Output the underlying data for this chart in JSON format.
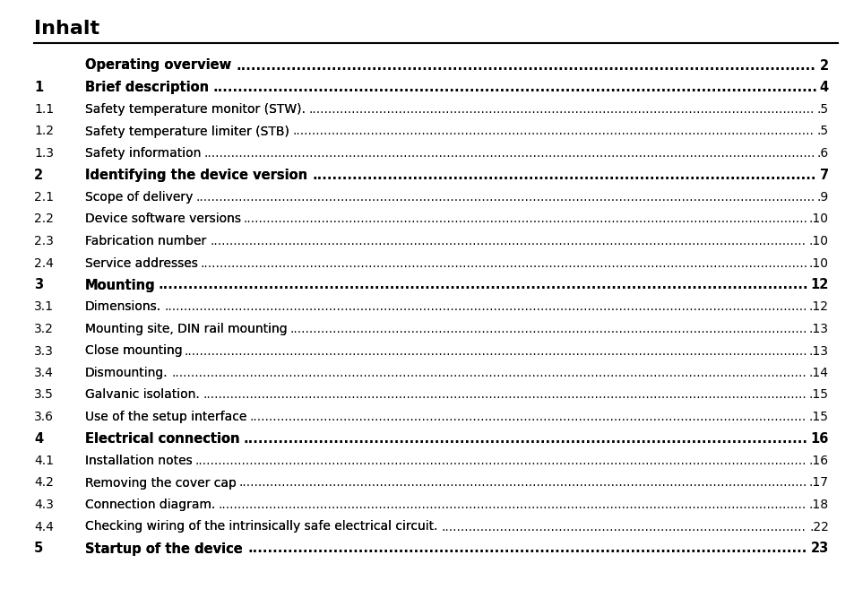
{
  "title": "Inhalt",
  "background_color": "#ffffff",
  "title_color": "#000000",
  "line_color": "#000000",
  "entries": [
    {
      "num": "",
      "text": "Operating overview",
      "page": "2",
      "bold": true
    },
    {
      "num": "1",
      "text": "Brief description",
      "page": "4",
      "bold": true
    },
    {
      "num": "1.1",
      "text": "Safety temperature monitor (STW).",
      "page": ".5",
      "bold": false
    },
    {
      "num": "1.2",
      "text": "Safety temperature limiter (STB)",
      "page": ".5",
      "bold": false
    },
    {
      "num": "1.3",
      "text": "Safety information",
      "page": ".6",
      "bold": false
    },
    {
      "num": "2",
      "text": "Identifying the device version",
      "page": "7",
      "bold": true
    },
    {
      "num": "2.1",
      "text": "Scope of delivery",
      "page": ".9",
      "bold": false
    },
    {
      "num": "2.2",
      "text": "Device software versions",
      "page": ".10",
      "bold": false
    },
    {
      "num": "2.3",
      "text": "Fabrication number",
      "page": ".10",
      "bold": false
    },
    {
      "num": "2.4",
      "text": "Service addresses",
      "page": ".10",
      "bold": false
    },
    {
      "num": "3",
      "text": "Mounting",
      "page": "12",
      "bold": true
    },
    {
      "num": "3.1",
      "text": "Dimensions.",
      "page": ".12",
      "bold": false
    },
    {
      "num": "3.2",
      "text": "Mounting site, DIN rail mounting",
      "page": ".13",
      "bold": false
    },
    {
      "num": "3.3",
      "text": "Close mounting",
      "page": ".13",
      "bold": false
    },
    {
      "num": "3.4",
      "text": "Dismounting.",
      "page": ".14",
      "bold": false
    },
    {
      "num": "3.5",
      "text": "Galvanic isolation.",
      "page": ".15",
      "bold": false
    },
    {
      "num": "3.6",
      "text": "Use of the setup interface",
      "page": ".15",
      "bold": false
    },
    {
      "num": "4",
      "text": "Electrical connection",
      "page": "16",
      "bold": true
    },
    {
      "num": "4.1",
      "text": "Installation notes",
      "page": ".16",
      "bold": false
    },
    {
      "num": "4.2",
      "text": "Removing the cover cap",
      "page": ".17",
      "bold": false
    },
    {
      "num": "4.3",
      "text": "Connection diagram.",
      "page": ".18",
      "bold": false
    },
    {
      "num": "4.4",
      "text": "Checking wiring of the intrinsically safe electrical circuit.",
      "page": ".22",
      "bold": false
    },
    {
      "num": "5",
      "text": "Startup of the device",
      "page": "23",
      "bold": true
    }
  ],
  "fig_width": 9.54,
  "fig_height": 6.77,
  "dpi": 100
}
